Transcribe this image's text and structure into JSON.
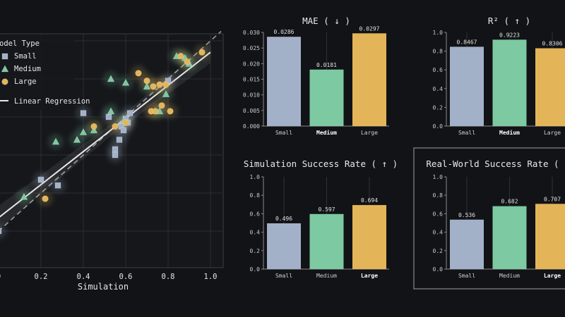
{
  "colors": {
    "small": "#a3b1c8",
    "medium": "#7cc9a2",
    "large": "#e4b558",
    "bg": "#121316",
    "grid": "#2a2c31",
    "axis": "#8a8a8a"
  },
  "chart_data": [
    {
      "type": "scatter",
      "xlabel": "Simulation",
      "xticks": [
        "0",
        "0.2",
        "0.4",
        "0.6",
        "0.8",
        "1.0"
      ],
      "xlim": [
        0,
        1.05
      ],
      "ylim": [
        -0.18,
        1.05
      ],
      "legend": {
        "title": "odel Type",
        "entries": [
          "Small",
          "Medium",
          "Large"
        ],
        "line_entry": "Linear Regression",
        "placement": "top-left"
      },
      "regression": {
        "slope": 0.87,
        "intercept": 0.07
      },
      "series": [
        {
          "name": "Small",
          "marker": "square",
          "points": [
            [
              0.0,
              0.0
            ],
            [
              0.2,
              0.27
            ],
            [
              0.28,
              0.24
            ],
            [
              0.4,
              0.62
            ],
            [
              0.52,
              0.6
            ],
            [
              0.55,
              0.43
            ],
            [
              0.55,
              0.4
            ],
            [
              0.57,
              0.48
            ],
            [
              0.58,
              0.55
            ],
            [
              0.59,
              0.53
            ],
            [
              0.6,
              0.59
            ],
            [
              0.61,
              0.57
            ],
            [
              0.62,
              0.62
            ],
            [
              0.8,
              0.79
            ]
          ]
        },
        {
          "name": "Medium",
          "marker": "triangle",
          "points": [
            [
              0.12,
              0.18
            ],
            [
              0.27,
              0.47
            ],
            [
              0.37,
              0.48
            ],
            [
              0.4,
              0.52
            ],
            [
              0.45,
              0.53
            ],
            [
              0.53,
              0.63
            ],
            [
              0.53,
              0.8
            ],
            [
              0.59,
              0.58
            ],
            [
              0.6,
              0.78
            ],
            [
              0.7,
              0.76
            ],
            [
              0.76,
              0.63
            ],
            [
              0.79,
              0.72
            ],
            [
              0.84,
              0.92
            ],
            [
              0.88,
              0.91
            ],
            [
              0.9,
              0.88
            ]
          ]
        },
        {
          "name": "Large",
          "marker": "circle",
          "points": [
            [
              0.22,
              0.17
            ],
            [
              0.45,
              0.55
            ],
            [
              0.55,
              0.55
            ],
            [
              0.6,
              0.57
            ],
            [
              0.66,
              0.83
            ],
            [
              0.7,
              0.79
            ],
            [
              0.72,
              0.63
            ],
            [
              0.73,
              0.76
            ],
            [
              0.74,
              0.63
            ],
            [
              0.76,
              0.77
            ],
            [
              0.77,
              0.66
            ],
            [
              0.79,
              0.77
            ],
            [
              0.81,
              0.63
            ],
            [
              0.86,
              0.92
            ],
            [
              0.89,
              0.89
            ],
            [
              0.96,
              0.94
            ]
          ]
        }
      ]
    },
    {
      "type": "bar",
      "title": "MAE ( ↓ )",
      "categories": [
        "Small",
        "Medium",
        "Large"
      ],
      "values": [
        0.0286,
        0.0181,
        0.0297
      ],
      "value_labels": [
        "0.0286",
        "0.0181",
        "0.0297"
      ],
      "yticks": [
        "0.000",
        "0.005",
        "0.010",
        "0.015",
        "0.020",
        "0.025",
        "0.030"
      ],
      "ylim": [
        0,
        0.03
      ],
      "bold_category": "Medium"
    },
    {
      "type": "bar",
      "title": "R² ( ↑ )",
      "categories": [
        "Small",
        "Medium",
        "Large"
      ],
      "values": [
        0.8467,
        0.9223,
        0.8306
      ],
      "value_labels": [
        "0.8467",
        "0.9223",
        "0.8306"
      ],
      "yticks": [
        "0.0",
        "0.2",
        "0.4",
        "0.6",
        "0.8",
        "1.0"
      ],
      "ylim": [
        0,
        1
      ],
      "bold_category": "Medium"
    },
    {
      "type": "bar",
      "title": "Simulation Success Rate ( ↑ )",
      "categories": [
        "Small",
        "Medium",
        "Large"
      ],
      "values": [
        0.496,
        0.597,
        0.694
      ],
      "value_labels": [
        "0.496",
        "0.597",
        "0.694"
      ],
      "yticks": [
        "0.0",
        "0.2",
        "0.4",
        "0.6",
        "0.8",
        "1.0"
      ],
      "ylim": [
        0,
        1
      ],
      "bold_category": "Large"
    },
    {
      "type": "bar",
      "title": "Real-World Success Rate ( ↑",
      "categories": [
        "Small",
        "Medium",
        "Large"
      ],
      "values": [
        0.536,
        0.682,
        0.707
      ],
      "value_labels": [
        "0.536",
        "0.682",
        "0.707"
      ],
      "yticks": [
        "0.0",
        "0.2",
        "0.4",
        "0.6",
        "0.8",
        "1.0"
      ],
      "ylim": [
        0,
        1
      ],
      "bold_category": "Large"
    }
  ]
}
